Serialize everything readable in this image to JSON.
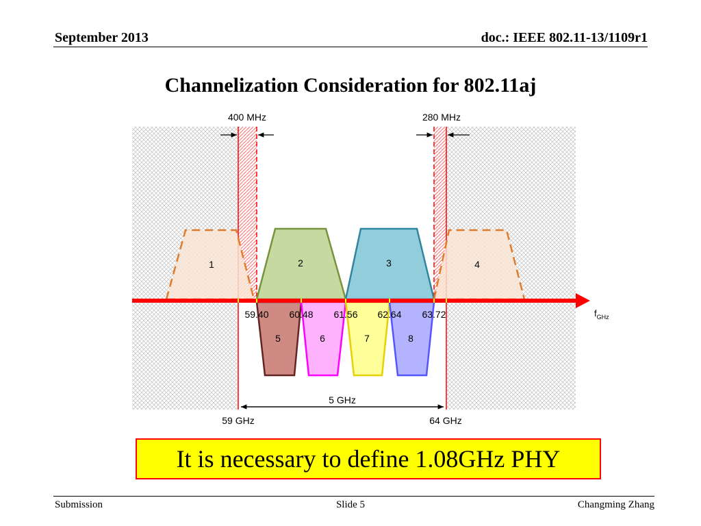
{
  "header": {
    "date": "September 2013",
    "doc": "doc.: IEEE 802.11-13/1109r1"
  },
  "title": "Channelization Consideration for 802.11aj",
  "diagram": {
    "guard_left": "400 MHz",
    "guard_right": "280 MHz",
    "upper_channels": [
      "1",
      "2",
      "3",
      "4"
    ],
    "lower_channels": [
      "5",
      "6",
      "7",
      "8"
    ],
    "freq_labels": [
      "59.40",
      "60.48",
      "61.56",
      "62.64",
      "63.72"
    ],
    "axis_label": "f",
    "axis_sub": "GHz",
    "span_label": "5 GHz",
    "start_label": "59 GHz",
    "end_label": "64 GHz",
    "colors": {
      "ch1": "#f9e4d4",
      "ch2": "#c6d9a0",
      "ch3": "#92cddc",
      "ch4": "#f9e4d4",
      "ch5": "#d08a84",
      "ch6": "#ffb3ff",
      "ch7": "#ffff99",
      "ch8": "#b3b3ff",
      "axis": "#ff0000",
      "dashed": "#e07b2a"
    }
  },
  "callout": "It is necessary to define 1.08GHz PHY",
  "footer": {
    "left": "Submission",
    "center": "Slide 5",
    "right": "Changming Zhang"
  }
}
